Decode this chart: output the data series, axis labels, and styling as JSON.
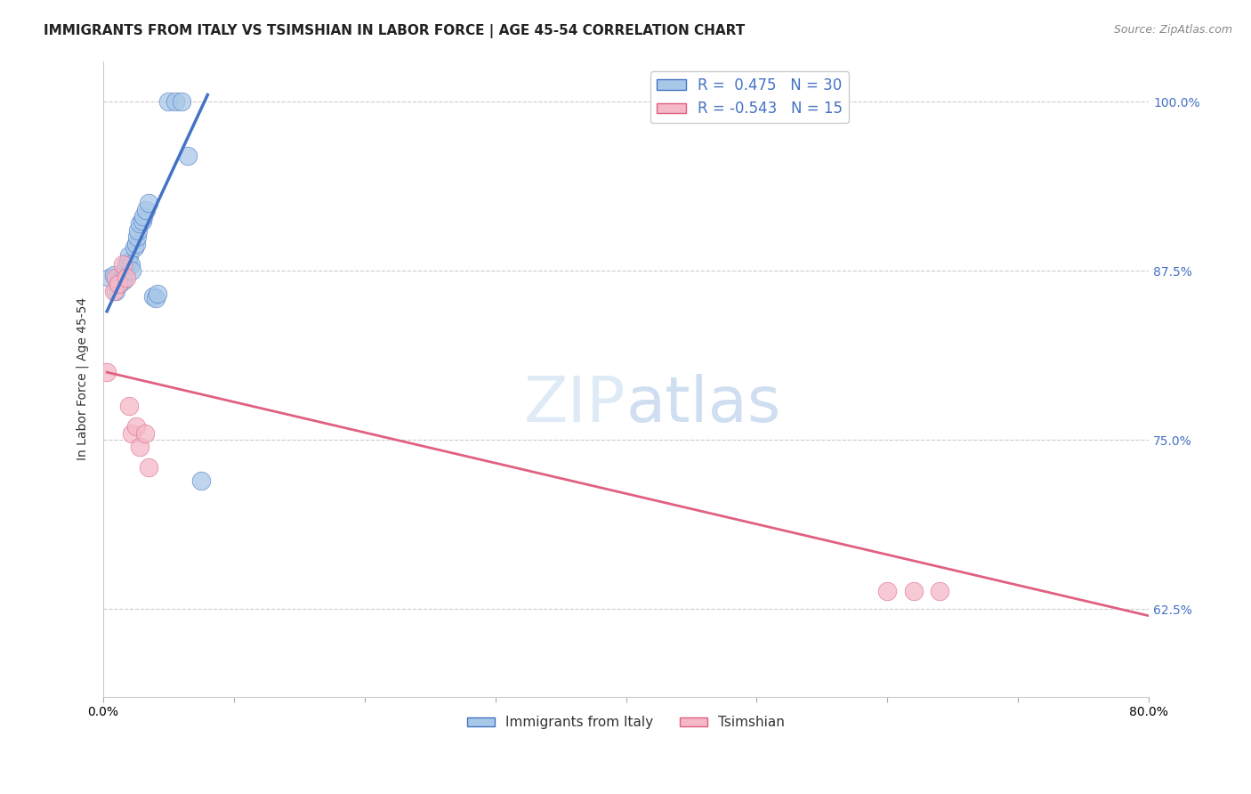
{
  "title": "IMMIGRANTS FROM ITALY VS TSIMSHIAN IN LABOR FORCE | AGE 45-54 CORRELATION CHART",
  "source": "Source: ZipAtlas.com",
  "ylabel": "In Labor Force | Age 45-54",
  "xlim": [
    0.0,
    0.8
  ],
  "ylim": [
    0.56,
    1.03
  ],
  "ytick_positions": [
    0.625,
    0.75,
    0.875,
    1.0
  ],
  "ytick_labels": [
    "62.5%",
    "75.0%",
    "87.5%",
    "100.0%"
  ],
  "xtick_positions": [
    0.0,
    0.1,
    0.2,
    0.3,
    0.4,
    0.5,
    0.6,
    0.7,
    0.8
  ],
  "xtick_labels": [
    "0.0%",
    "",
    "",
    "",
    "",
    "",
    "",
    "",
    "80.0%"
  ],
  "blue_R": 0.475,
  "blue_N": 30,
  "pink_R": -0.543,
  "pink_N": 15,
  "blue_scatter_color": "#a8c8e8",
  "pink_scatter_color": "#f4b8c8",
  "blue_line_color": "#4472c4",
  "pink_line_color": "#e06080",
  "watermark_zip": "ZIP",
  "watermark_atlas": "atlas",
  "legend_label_blue": "Immigrants from Italy",
  "legend_label_pink": "Tsimshian",
  "title_fontsize": 11,
  "axis_label_fontsize": 10,
  "tick_fontsize": 10,
  "blue_points_x": [
    0.005,
    0.008,
    0.01,
    0.012,
    0.013,
    0.015,
    0.016,
    0.017,
    0.018,
    0.019,
    0.02,
    0.021,
    0.022,
    0.024,
    0.025,
    0.026,
    0.027,
    0.028,
    0.03,
    0.031,
    0.033,
    0.035,
    0.038,
    0.04,
    0.042,
    0.05,
    0.055,
    0.06,
    0.065,
    0.075
  ],
  "blue_points_y": [
    0.87,
    0.872,
    0.86,
    0.868,
    0.866,
    0.87,
    0.868,
    0.875,
    0.88,
    0.882,
    0.886,
    0.88,
    0.875,
    0.892,
    0.895,
    0.9,
    0.905,
    0.91,
    0.912,
    0.915,
    0.92,
    0.925,
    0.856,
    0.855,
    0.858,
    1.0,
    1.0,
    1.0,
    0.96,
    0.72
  ],
  "pink_points_x": [
    0.003,
    0.008,
    0.01,
    0.012,
    0.015,
    0.018,
    0.02,
    0.022,
    0.025,
    0.028,
    0.032,
    0.035,
    0.6,
    0.62,
    0.64
  ],
  "pink_points_y": [
    0.8,
    0.86,
    0.87,
    0.865,
    0.88,
    0.87,
    0.775,
    0.755,
    0.76,
    0.745,
    0.755,
    0.73,
    0.638,
    0.638,
    0.638
  ],
  "blue_line_x": [
    0.003,
    0.08
  ],
  "blue_line_y": [
    0.845,
    1.005
  ],
  "pink_line_x": [
    0.003,
    0.8
  ],
  "pink_line_y": [
    0.8,
    0.62
  ]
}
